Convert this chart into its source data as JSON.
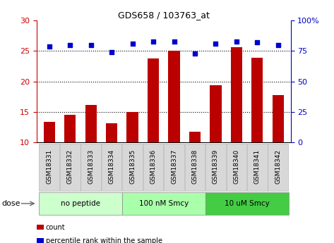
{
  "title": "GDS658 / 103763_at",
  "samples": [
    "GSM18331",
    "GSM18332",
    "GSM18333",
    "GSM18334",
    "GSM18335",
    "GSM18336",
    "GSM18337",
    "GSM18338",
    "GSM18339",
    "GSM18340",
    "GSM18341",
    "GSM18342"
  ],
  "bar_values": [
    13.3,
    14.5,
    16.1,
    13.1,
    15.0,
    23.8,
    25.1,
    11.7,
    19.4,
    25.6,
    23.9,
    17.8
  ],
  "dot_values": [
    79,
    80,
    80,
    74,
    81,
    83,
    83,
    73,
    81,
    83,
    82,
    80
  ],
  "bar_color": "#bb0000",
  "dot_color": "#0000cc",
  "ylim_left": [
    10,
    30
  ],
  "ylim_right": [
    0,
    100
  ],
  "yticks_left": [
    10,
    15,
    20,
    25,
    30
  ],
  "yticks_right": [
    0,
    25,
    50,
    75,
    100
  ],
  "ytick_labels_right": [
    "0",
    "25",
    "50",
    "75",
    "100%"
  ],
  "grid_values": [
    15,
    20,
    25
  ],
  "dose_groups": [
    {
      "label": "no peptide",
      "start": 0,
      "end": 4,
      "color": "#ccffcc"
    },
    {
      "label": "100 nM Smcy",
      "start": 4,
      "end": 8,
      "color": "#aaffaa"
    },
    {
      "label": "10 uM Smcy",
      "start": 8,
      "end": 12,
      "color": "#44cc44"
    }
  ],
  "dose_label": "dose",
  "legend_items": [
    {
      "label": "count",
      "color": "#bb0000"
    },
    {
      "label": "percentile rank within the sample",
      "color": "#0000cc"
    }
  ],
  "bar_width": 0.55,
  "bg_color": "#ffffff",
  "left_tick_color": "#cc0000",
  "right_tick_color": "#0000cc",
  "tick_label_bg": "#d8d8d8",
  "fig_width": 4.73,
  "fig_height": 3.45,
  "dpi": 100
}
